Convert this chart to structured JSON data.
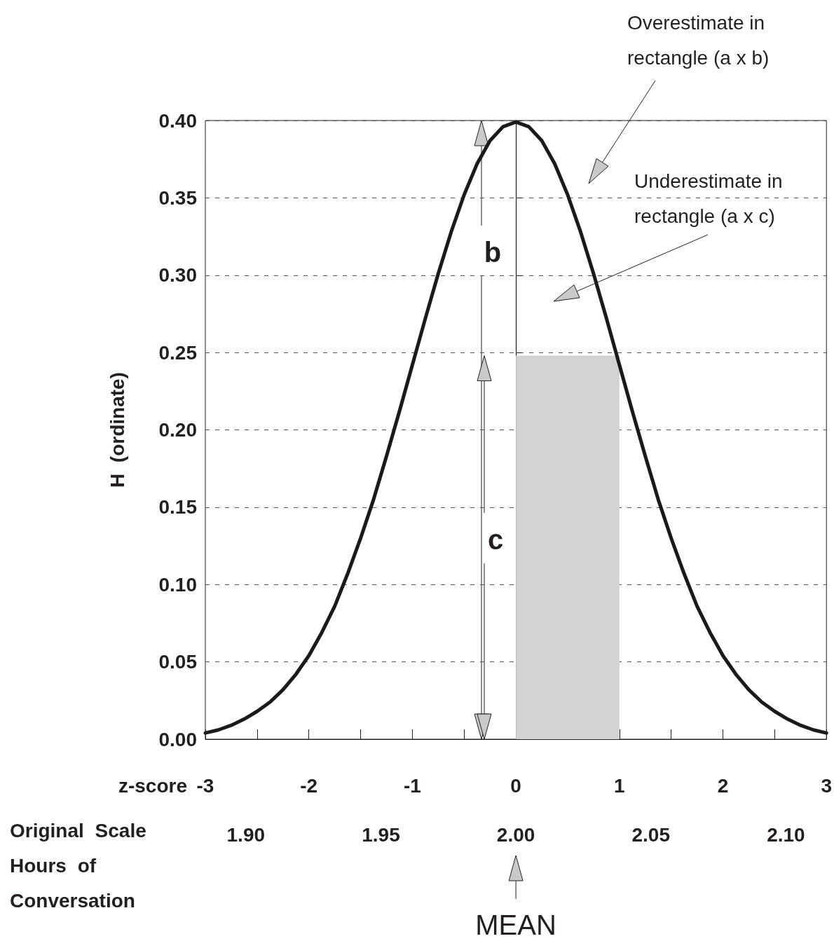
{
  "chart_data": {
    "type": "line",
    "xlabel": "z-score",
    "ylabel": "H  (ordinate)",
    "x2label": "Original  Scale Hours  of Conversation",
    "x": [
      -3,
      -2.875,
      -2.75,
      -2.625,
      -2.5,
      -2.375,
      -2.25,
      -2.125,
      -2,
      -1.875,
      -1.75,
      -1.625,
      -1.5,
      -1.375,
      -1.25,
      -1.125,
      -1,
      -0.875,
      -0.75,
      -0.625,
      -0.5,
      -0.375,
      -0.25,
      -0.125,
      0,
      0.125,
      0.25,
      0.375,
      0.5,
      0.625,
      0.75,
      0.875,
      1,
      1.125,
      1.25,
      1.375,
      1.5,
      1.625,
      1.75,
      1.875,
      2,
      2.125,
      2.25,
      2.375,
      2.5,
      2.625,
      2.75,
      2.875,
      3
    ],
    "series": [
      {
        "color": "#1a1a1a",
        "values": [
          0.004,
          0.006,
          0.009,
          0.013,
          0.018,
          0.024,
          0.032,
          0.042,
          0.054,
          0.069,
          0.086,
          0.107,
          0.13,
          0.155,
          0.183,
          0.212,
          0.242,
          0.272,
          0.301,
          0.328,
          0.352,
          0.372,
          0.387,
          0.396,
          0.399,
          0.396,
          0.387,
          0.372,
          0.352,
          0.328,
          0.301,
          0.272,
          0.242,
          0.212,
          0.183,
          0.155,
          0.13,
          0.107,
          0.086,
          0.069,
          0.054,
          0.042,
          0.032,
          0.024,
          0.018,
          0.013,
          0.009,
          0.006,
          0.004
        ]
      },
      {
        "type": "area",
        "color": "#d1d3d4",
        "x": [
          0,
          1
        ],
        "values": [
          0.248,
          0.248
        ]
      }
    ],
    "xlim": [
      -3,
      3
    ],
    "xticks": [
      -3,
      {
        "value": -2.5,
        "label": null
      },
      -2,
      {
        "value": -1.5,
        "label": null
      },
      -1,
      {
        "value": -0.5,
        "label": null
      },
      0,
      {
        "value": 0.5,
        "label": null
      },
      1,
      {
        "value": 1.5,
        "label": null
      },
      2,
      {
        "value": 2.5,
        "label": null
      },
      3
    ],
    "x2lim": [
      1.885,
      2.115
    ],
    "x2ticks": [
      {
        "value": 1.9,
        "label": "1.90"
      },
      1.95,
      {
        "value": 2.0,
        "label": "2.00"
      },
      2.05,
      {
        "value": 2.1,
        "label": "2.10"
      }
    ],
    "ylim": [
      0,
      0.4
    ],
    "yticks": [
      {
        "value": 0,
        "label": "0.00"
      },
      0.05,
      {
        "value": 0.1,
        "label": "0.10"
      },
      0.15,
      {
        "value": 0.2,
        "label": "0.20"
      },
      0.25,
      {
        "value": 0.3,
        "label": "0.30"
      },
      0.35,
      {
        "value": 0.4,
        "label": "0.40"
      }
    ],
    "grid": "y",
    "marker": "none",
    "ref_lines": [
      {
        "axis": "x",
        "value": 0,
        "color": "#000000"
      }
    ],
    "annotations": [
      "Overestimate in rectangle (a x b)",
      "Underestimate in rectangle (a x c)",
      "b",
      "c",
      {
        "text": "MEAN",
        "x": 0
      }
    ]
  }
}
